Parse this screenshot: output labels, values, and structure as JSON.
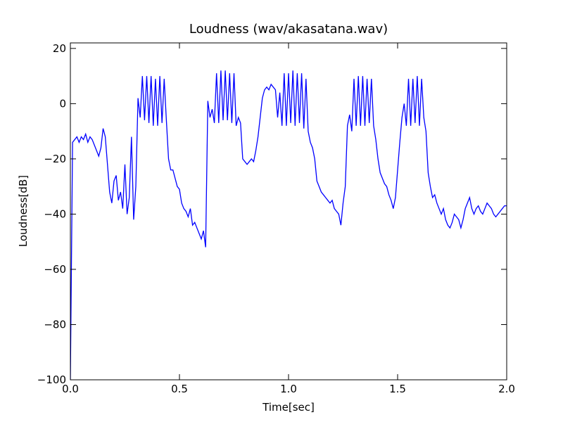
{
  "chart_data": {
    "type": "line",
    "title": "Loudness (wav/akasatana.wav)",
    "xlabel": "Time[sec]",
    "ylabel": "Loudness[dB]",
    "color": "#0000ff",
    "xlim": [
      0,
      2
    ],
    "ylim": [
      -100,
      22
    ],
    "xticks": [
      {
        "value": 0,
        "label": "0.0"
      },
      0.5,
      {
        "value": 1,
        "label": "1.0"
      },
      1.5,
      {
        "value": 2,
        "label": "2.0"
      }
    ],
    "yticks": [
      {
        "value": -100,
        "label": "−100"
      },
      {
        "value": -80,
        "label": "−80"
      },
      {
        "value": -60,
        "label": "−60"
      },
      {
        "value": -40,
        "label": "−40"
      },
      {
        "value": -20,
        "label": "−20"
      },
      0,
      20
    ],
    "x": [
      0,
      0.01,
      0.02,
      0.03,
      0.04,
      0.05,
      0.06,
      0.07,
      0.08,
      0.09,
      0.1,
      0.11,
      0.12,
      0.13,
      0.14,
      0.15,
      0.16,
      0.17,
      0.18,
      0.19,
      0.2,
      0.21,
      0.22,
      0.23,
      0.24,
      0.25,
      0.26,
      0.27,
      0.28,
      0.29,
      0.3,
      0.31,
      0.32,
      0.33,
      0.34,
      0.35,
      0.36,
      0.37,
      0.38,
      0.39,
      0.4,
      0.41,
      0.42,
      0.43,
      0.44,
      0.45,
      0.46,
      0.47,
      0.48,
      0.49,
      0.5,
      0.51,
      0.52,
      0.53,
      0.54,
      0.55,
      0.56,
      0.57,
      0.58,
      0.59,
      0.6,
      0.61,
      0.62,
      0.63,
      0.64,
      0.65,
      0.66,
      0.67,
      0.68,
      0.69,
      0.7,
      0.71,
      0.72,
      0.73,
      0.74,
      0.75,
      0.76,
      0.77,
      0.78,
      0.79,
      0.8,
      0.81,
      0.82,
      0.83,
      0.84,
      0.85,
      0.86,
      0.87,
      0.88,
      0.89,
      0.9,
      0.91,
      0.92,
      0.93,
      0.94,
      0.95,
      0.96,
      0.97,
      0.98,
      0.99,
      1,
      1.01,
      1.02,
      1.03,
      1.04,
      1.05,
      1.06,
      1.07,
      1.08,
      1.09,
      1.1,
      1.11,
      1.12,
      1.13,
      1.14,
      1.15,
      1.16,
      1.17,
      1.18,
      1.19,
      1.2,
      1.21,
      1.22,
      1.23,
      1.24,
      1.25,
      1.26,
      1.27,
      1.28,
      1.29,
      1.3,
      1.31,
      1.32,
      1.33,
      1.34,
      1.35,
      1.36,
      1.37,
      1.38,
      1.39,
      1.4,
      1.41,
      1.42,
      1.43,
      1.44,
      1.45,
      1.46,
      1.47,
      1.48,
      1.49,
      1.5,
      1.51,
      1.52,
      1.53,
      1.54,
      1.55,
      1.56,
      1.57,
      1.58,
      1.59,
      1.6,
      1.61,
      1.62,
      1.63,
      1.64,
      1.65,
      1.66,
      1.67,
      1.68,
      1.69,
      1.7,
      1.71,
      1.72,
      1.73,
      1.74,
      1.75,
      1.76,
      1.77,
      1.78,
      1.79,
      1.8,
      1.81,
      1.82,
      1.83,
      1.84,
      1.85,
      1.86,
      1.87,
      1.88,
      1.89,
      1.9,
      1.91,
      1.92,
      1.93,
      1.94,
      1.95,
      1.96,
      1.97,
      1.98,
      1.99,
      2
    ],
    "values": [
      -100,
      -14,
      -13,
      -12,
      -14,
      -12,
      -13,
      -11,
      -14,
      -12,
      -13,
      -15,
      -17,
      -19,
      -16,
      -9,
      -12,
      -22,
      -32,
      -36,
      -28,
      -26,
      -35,
      -32,
      -38,
      -22,
      -40,
      -34,
      -12,
      -42,
      -30,
      2,
      -5,
      10,
      -6,
      10,
      -7,
      10,
      -8,
      9,
      -8,
      10,
      -7,
      9,
      -6,
      -20,
      -24,
      -24,
      -27,
      -30,
      -31,
      -36,
      -38,
      -39,
      -41,
      -38,
      -44,
      -43,
      -45,
      -47,
      -49,
      -46,
      -52,
      1,
      -5,
      -2,
      -7,
      11,
      -7,
      12,
      -6,
      12,
      -6,
      11,
      -7,
      11,
      -8,
      -5,
      -7,
      -20,
      -21,
      -22,
      -21,
      -20,
      -21,
      -17,
      -12,
      -5,
      2,
      5,
      6,
      5,
      7,
      6,
      5,
      -5,
      4,
      -8,
      11,
      -8,
      11,
      -7,
      12,
      -8,
      11,
      -7,
      11,
      -9,
      9,
      -10,
      -14,
      -16,
      -20,
      -28,
      -30,
      -32,
      -33,
      -34,
      -35,
      -36,
      -35,
      -38,
      -39,
      -40,
      -44,
      -36,
      -30,
      -8,
      -4,
      -10,
      9,
      -8,
      10,
      -8,
      10,
      -8,
      9,
      -7,
      9,
      -8,
      -13,
      -20,
      -25,
      -27,
      -29,
      -30,
      -33,
      -35,
      -38,
      -34,
      -24,
      -14,
      -5,
      0,
      -8,
      9,
      -8,
      9,
      -7,
      10,
      -8,
      9,
      -5,
      -10,
      -25,
      -30,
      -34,
      -33,
      -36,
      -38,
      -40,
      -38,
      -42,
      -44,
      -45,
      -43,
      -40,
      -41,
      -42,
      -45,
      -42,
      -38,
      -36,
      -34,
      -38,
      -40,
      -38,
      -37,
      -39,
      -40,
      -38,
      -36,
      -37,
      -38,
      -40,
      -41,
      -40,
      -39,
      -38,
      -37,
      -37
    ]
  }
}
